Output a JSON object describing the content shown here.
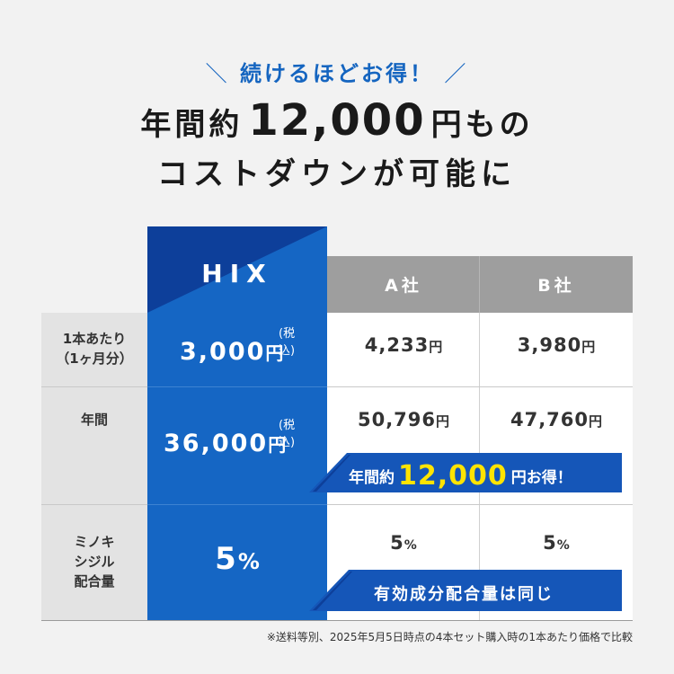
{
  "header": {
    "tagline_left": "＼",
    "tagline": "続けるほどお得！",
    "tagline_right": "／",
    "headline_pre": "年間約",
    "headline_amount": "12,000",
    "headline_post": "円もの",
    "headline2": "コストダウンが可能に"
  },
  "columns": {
    "hix": "HIX",
    "a": "A社",
    "b": "B社"
  },
  "rows": [
    {
      "label_line1": "1本あたり",
      "label_line2": "（1ヶ月分）",
      "hix_value": "3,000",
      "hix_unit": "円",
      "hix_tax": "(税込)",
      "a_value": "4,233",
      "a_unit": "円",
      "b_value": "3,980",
      "b_unit": "円"
    },
    {
      "label": "年間",
      "hix_value": "36,000",
      "hix_unit": "円",
      "hix_tax": "(税込)",
      "a_value": "50,796",
      "a_unit": "円",
      "b_value": "47,760",
      "b_unit": "円"
    },
    {
      "label_line1": "ミノキ",
      "label_line2": "シジル",
      "label_line3": "配合量",
      "hix_value": "5",
      "hix_unit": "%",
      "a_value": "5",
      "a_unit": "%",
      "b_value": "5",
      "b_unit": "%"
    }
  ],
  "banners": {
    "savings_pre": "年間約",
    "savings_amount": "12,000",
    "savings_post": "円お得！",
    "same_ingredient": "有効成分配合量は同じ"
  },
  "footnote": "※送料等別、2025年5月5日時点の4本セット購入時の1本あたり価格で比較",
  "colors": {
    "hix_blue": "#1566c4",
    "hix_dark": "#0d3f9a",
    "banner_blue": "#1556b8",
    "highlight_yellow": "#ffe400",
    "header_gray": "#9e9e9e"
  }
}
